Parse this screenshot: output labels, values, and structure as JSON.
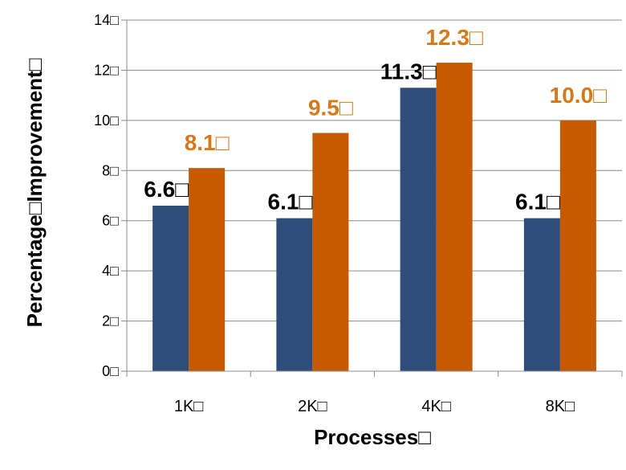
{
  "chart_data": {
    "type": "bar",
    "categories": [
      "1K□",
      "2K□",
      "4K□",
      "8K□"
    ],
    "series": [
      {
        "values": [
          6.6,
          6.1,
          11.3,
          6.1
        ],
        "labels": [
          "6.6□",
          "6.1□",
          "11.3□",
          "6.1□"
        ],
        "color": "#2E4D7B",
        "label_color": "#000000"
      },
      {
        "values": [
          8.1,
          9.5,
          12.3,
          10.0
        ],
        "labels": [
          "8.1□",
          "9.5□",
          "12.3□",
          "10.0□"
        ],
        "color": "#C55A00",
        "label_color": "#D27A1C"
      }
    ],
    "title": "",
    "xlabel": "Processes□",
    "ylabel": "Percentage□Improvement□",
    "ylim": [
      0,
      14
    ],
    "yticks": [
      0,
      2,
      4,
      6,
      8,
      10,
      12,
      14
    ],
    "ytick_labels": [
      "0□",
      "2□",
      "4□",
      "6□",
      "8□",
      "10□",
      "12□",
      "14□"
    ],
    "grid": true,
    "legend": "none"
  }
}
